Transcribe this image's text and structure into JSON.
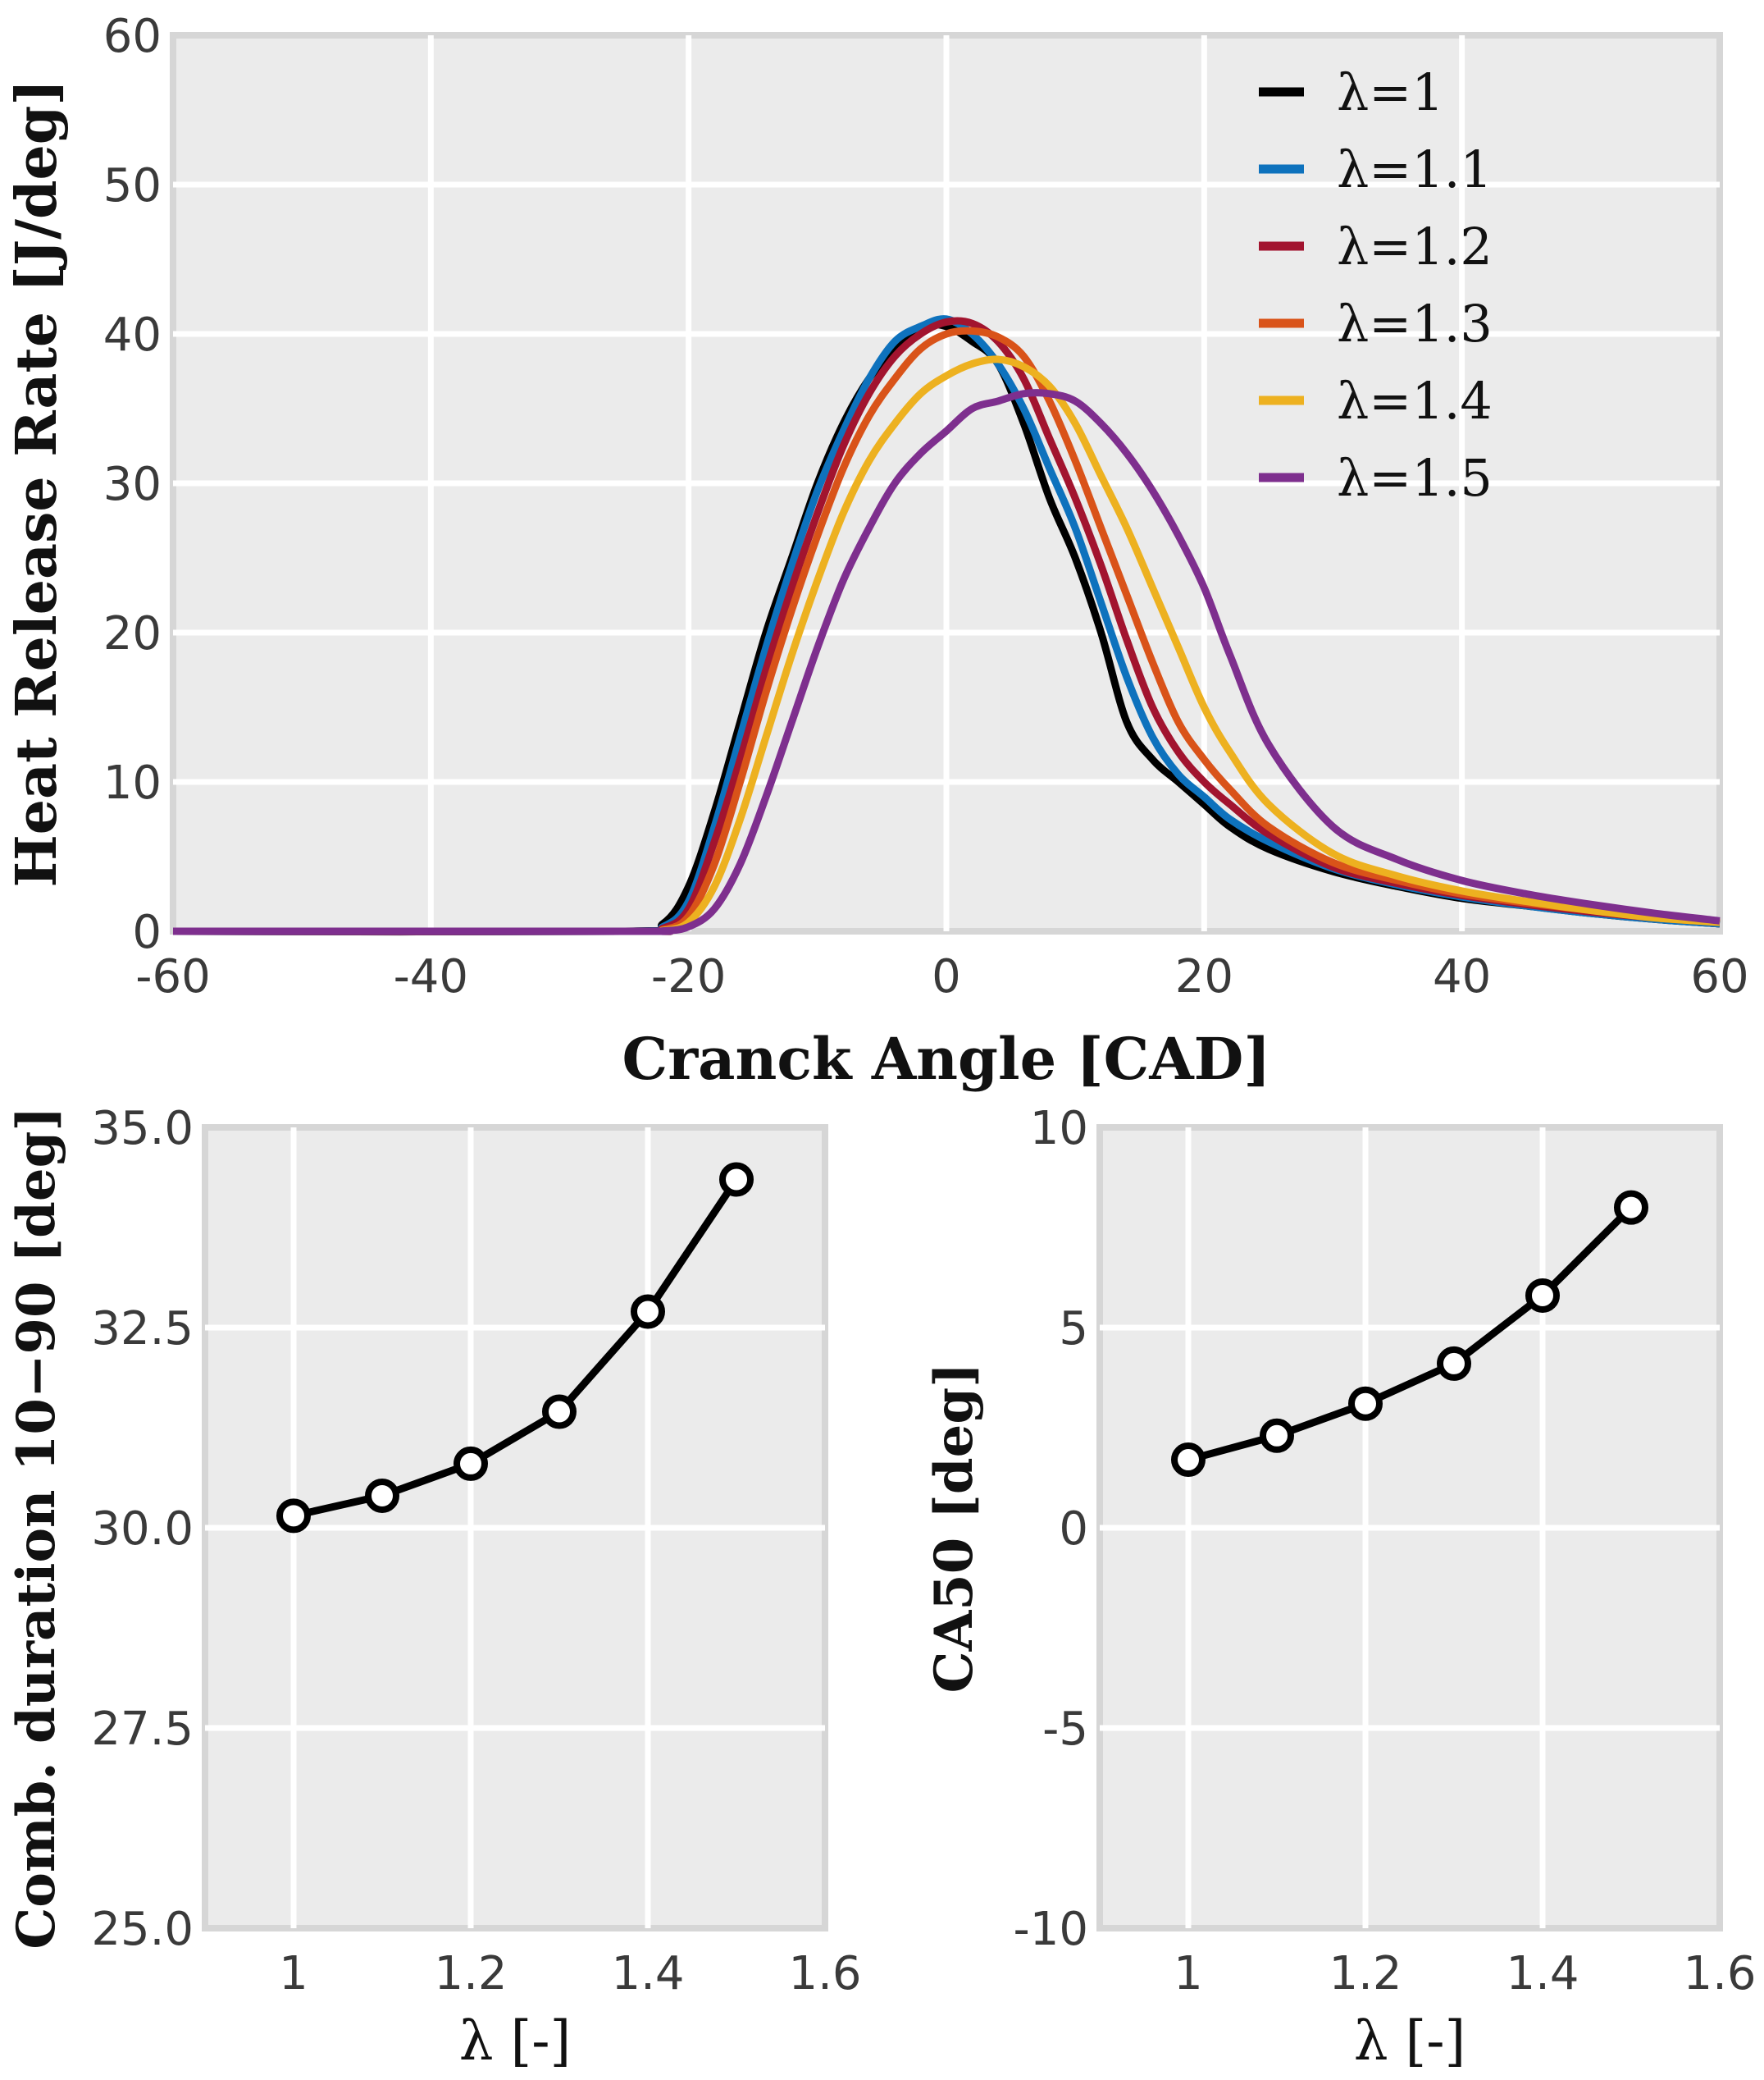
{
  "chart_data": [
    {
      "type": "line",
      "id": "hrr",
      "title": "",
      "xlabel": "Cranck Angle [CAD]",
      "ylabel": "Heat Release Rate [J/deg]",
      "xlim": [
        -60,
        60
      ],
      "ylim": [
        0,
        60
      ],
      "xticks": [
        -60,
        -40,
        -20,
        0,
        20,
        40,
        60
      ],
      "xtick_labels": [
        "-60",
        "-40",
        "-20",
        "0",
        "20",
        "40",
        "60"
      ],
      "yticks": [
        0,
        10,
        20,
        30,
        40,
        50,
        60
      ],
      "ytick_labels": [
        "0",
        "10",
        "20",
        "30",
        "40",
        "50",
        "60"
      ],
      "grid": true,
      "legend_position": "top-right",
      "series": [
        {
          "name": "λ=1",
          "color": "#000000",
          "x": [
            -60,
            -25,
            -22,
            -20,
            -18,
            -16,
            -14,
            -12,
            -10,
            -8,
            -6,
            -4,
            -2,
            0,
            2,
            4,
            6,
            8,
            10,
            12,
            14,
            16,
            18,
            20,
            22,
            25,
            30,
            35,
            40,
            45,
            50,
            55,
            60
          ],
          "values": [
            0,
            0,
            0.5,
            3,
            8,
            14,
            20,
            25,
            30,
            34,
            37,
            39,
            40.5,
            40.5,
            39.5,
            38,
            34,
            29,
            25,
            20,
            14,
            11.5,
            10,
            8.5,
            7,
            5.5,
            4,
            3,
            2.2,
            1.7,
            1.2,
            0.8,
            0.5
          ]
        },
        {
          "name": "λ=1.1",
          "color": "#0e72bd",
          "x": [
            -60,
            -25,
            -22,
            -20,
            -18,
            -16,
            -14,
            -12,
            -10,
            -8,
            -6,
            -4,
            -2,
            0,
            2,
            4,
            6,
            8,
            10,
            12,
            14,
            16,
            18,
            20,
            22,
            25,
            30,
            35,
            40,
            45,
            50,
            55,
            60
          ],
          "values": [
            0,
            0,
            0.3,
            2,
            7,
            13,
            19,
            24.5,
            29.5,
            33.5,
            37,
            39.5,
            40.5,
            41,
            40,
            38,
            35,
            31,
            27,
            22,
            17,
            13,
            10.5,
            9,
            7.5,
            6,
            4.2,
            3.1,
            2.3,
            1.7,
            1.2,
            0.8,
            0.5
          ]
        },
        {
          "name": "λ=1.2",
          "color": "#a2142f",
          "x": [
            -60,
            -25,
            -22,
            -20,
            -18,
            -16,
            -14,
            -12,
            -10,
            -8,
            -6,
            -4,
            -2,
            0,
            2,
            4,
            6,
            8,
            10,
            12,
            14,
            16,
            18,
            20,
            22,
            25,
            30,
            35,
            40,
            45,
            50,
            55,
            60
          ],
          "values": [
            0,
            0,
            0.2,
            1.5,
            6,
            11.5,
            17.5,
            23,
            28,
            32.5,
            36,
            38.5,
            40,
            40.8,
            40.7,
            39.5,
            37,
            33,
            29,
            24.5,
            19.5,
            15,
            12,
            10,
            8.5,
            6.5,
            4.3,
            3.2,
            2.4,
            1.8,
            1.3,
            0.9,
            0.6
          ]
        },
        {
          "name": "λ=1.3",
          "color": "#d95319",
          "x": [
            -60,
            -25,
            -22,
            -20,
            -18,
            -16,
            -14,
            -12,
            -10,
            -8,
            -6,
            -4,
            -2,
            0,
            2,
            4,
            6,
            8,
            10,
            12,
            14,
            16,
            18,
            20,
            22,
            25,
            30,
            35,
            40,
            45,
            50,
            55,
            60
          ],
          "values": [
            0,
            0,
            0.1,
            1,
            4.5,
            10,
            16,
            21.5,
            26.5,
            31,
            34.5,
            37,
            39,
            40,
            40.2,
            39.8,
            38.5,
            35.5,
            31.5,
            27,
            22.5,
            18,
            14,
            11.5,
            9.5,
            7,
            4.6,
            3.4,
            2.5,
            1.9,
            1.4,
            0.9,
            0.6
          ]
        },
        {
          "name": "λ=1.4",
          "color": "#edb120",
          "x": [
            -60,
            -25,
            -22,
            -20,
            -18,
            -16,
            -14,
            -12,
            -10,
            -8,
            -6,
            -4,
            -2,
            0,
            2,
            4,
            6,
            8,
            10,
            12,
            14,
            16,
            18,
            20,
            22,
            25,
            30,
            35,
            40,
            45,
            50,
            55,
            60
          ],
          "values": [
            0,
            0,
            0.05,
            0.6,
            3,
            7.5,
            13,
            18.5,
            23.5,
            28,
            31.5,
            34,
            36,
            37.2,
            38,
            38.3,
            37.8,
            36.5,
            34,
            30.5,
            27,
            23,
            19,
            15,
            12,
            8.5,
            5.2,
            3.7,
            2.7,
            2,
            1.4,
            0.9,
            0.6
          ]
        },
        {
          "name": "λ=1.5",
          "color": "#7e2f8e",
          "x": [
            -60,
            -25,
            -22,
            -20,
            -18,
            -16,
            -14,
            -12,
            -10,
            -8,
            -6,
            -4,
            -2,
            0,
            2,
            4,
            6,
            8,
            10,
            12,
            14,
            16,
            18,
            20,
            22,
            25,
            30,
            35,
            40,
            45,
            50,
            55,
            60
          ],
          "values": [
            0,
            0,
            0.02,
            0.3,
            1.5,
            4.5,
            9,
            14,
            19,
            23.5,
            27,
            30,
            32,
            33.5,
            35,
            35.5,
            36,
            36,
            35.5,
            34,
            32,
            29.5,
            26.5,
            23,
            18.5,
            12.5,
            7,
            4.8,
            3.4,
            2.5,
            1.8,
            1.2,
            0.7
          ]
        }
      ]
    },
    {
      "type": "line",
      "id": "comb",
      "xlabel": "λ [-]",
      "ylabel": "Comb. duration 10−90 [deg]",
      "xlim": [
        0.9,
        1.6
      ],
      "ylim": [
        25.0,
        35.0
      ],
      "xticks": [
        1.0,
        1.2,
        1.4,
        1.6
      ],
      "xtick_labels": [
        "1",
        "1.2",
        "1.4",
        "1.6"
      ],
      "yticks": [
        25.0,
        27.5,
        30.0,
        32.5,
        35.0
      ],
      "ytick_labels": [
        "25.0",
        "27.5",
        "30.0",
        "32.5",
        "35.0"
      ],
      "grid": true,
      "markers": "open-circle",
      "x": [
        1.0,
        1.1,
        1.2,
        1.3,
        1.4,
        1.5
      ],
      "values": [
        30.15,
        30.4,
        30.8,
        31.45,
        32.7,
        34.35
      ]
    },
    {
      "type": "line",
      "id": "ca50",
      "xlabel": "λ [-]",
      "ylabel": "CA50 [deg]",
      "xlim": [
        0.9,
        1.6
      ],
      "ylim": [
        -10,
        10
      ],
      "xticks": [
        1.0,
        1.2,
        1.4,
        1.6
      ],
      "xtick_labels": [
        "1",
        "1.2",
        "1.4",
        "1.6"
      ],
      "yticks": [
        -10,
        -5,
        0,
        5,
        10
      ],
      "ytick_labels": [
        "-10",
        "-5",
        "0",
        "5",
        "10"
      ],
      "grid": true,
      "markers": "open-circle",
      "x": [
        1.0,
        1.1,
        1.2,
        1.3,
        1.4,
        1.5
      ],
      "values": [
        1.7,
        2.3,
        3.1,
        4.1,
        5.8,
        8.0
      ]
    }
  ]
}
